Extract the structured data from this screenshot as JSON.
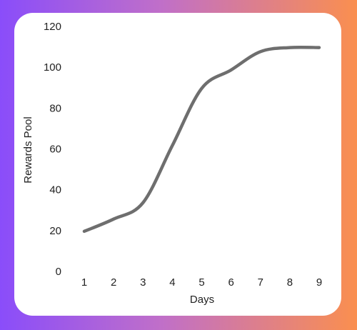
{
  "chart_data": {
    "type": "line",
    "x_label": "Days",
    "y_label": "Rewards Pool",
    "x": [
      1,
      2,
      3,
      4,
      5,
      6,
      7,
      8,
      9
    ],
    "series": [
      {
        "color": "#6e6e6e",
        "values": [
          20,
          26,
          34,
          62,
          90,
          99,
          108,
          110,
          110
        ]
      }
    ],
    "xlim": [
      1,
      9
    ],
    "xticks": [
      1,
      2,
      3,
      4,
      5,
      6,
      7,
      8,
      9
    ],
    "ylim": [
      0,
      120
    ],
    "yticks": [
      0,
      20,
      40,
      60,
      80,
      100,
      120
    ],
    "grid": false,
    "smooth": true
  }
}
